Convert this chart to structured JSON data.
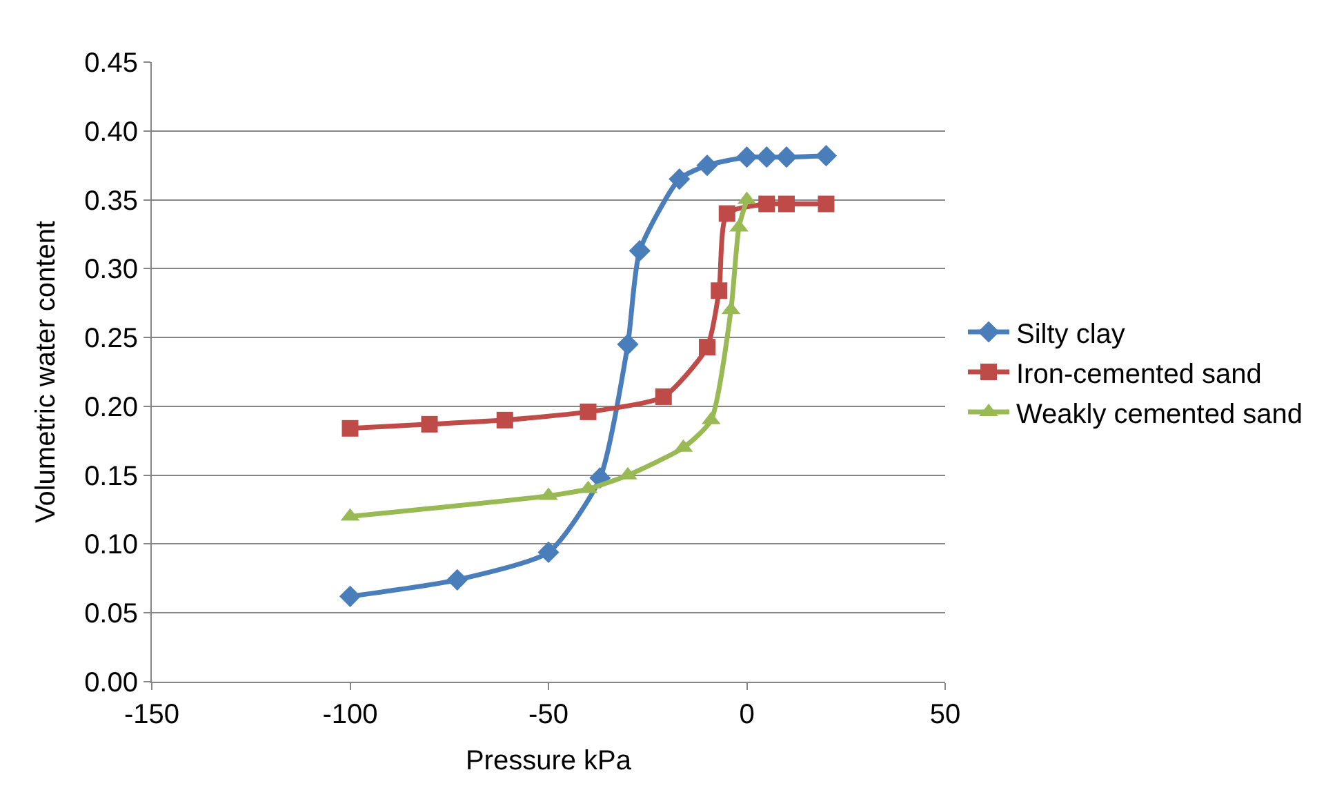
{
  "chart_data": {
    "type": "line",
    "xlabel": "Pressure kPa",
    "ylabel": "Volumetric water content",
    "xlim": [
      -150,
      50
    ],
    "xticks": [
      -150,
      -100,
      -50,
      0,
      50
    ],
    "ylim": [
      0,
      0.45
    ],
    "yticks": [
      {
        "value": 0,
        "label": "0.00"
      },
      {
        "value": 0.05,
        "label": "0.05"
      },
      {
        "value": 0.1,
        "label": "0.10"
      },
      {
        "value": 0.15,
        "label": "0.15"
      },
      {
        "value": 0.2,
        "label": "0.20"
      },
      {
        "value": 0.25,
        "label": "0.25"
      },
      {
        "value": 0.3,
        "label": "0.30"
      },
      {
        "value": 0.35,
        "label": "0.35"
      },
      {
        "value": 0.4,
        "label": "0.40"
      },
      {
        "value": 0.45,
        "label": "0.45"
      }
    ],
    "grid": "y",
    "legend": "right",
    "line_style": "solid",
    "series": [
      {
        "name": "Silty clay",
        "color": "#4a7ebb",
        "marker": "diamond",
        "x": [
          -100,
          -73,
          -50,
          -37,
          -30,
          -27,
          -17,
          -10,
          0,
          5,
          10,
          20
        ],
        "values": [
          0.062,
          0.074,
          0.094,
          0.148,
          0.245,
          0.313,
          0.365,
          0.375,
          0.381,
          0.381,
          0.381,
          0.382
        ]
      },
      {
        "name": "Iron-cemented sand",
        "color": "#be4b48",
        "marker": "square",
        "x": [
          -100,
          -80,
          -61,
          -40,
          -21,
          -10,
          -7,
          -5,
          0,
          5,
          10,
          20
        ],
        "values": [
          0.184,
          0.187,
          0.19,
          0.196,
          0.207,
          0.243,
          0.284,
          0.34,
          null,
          0.347,
          0.347,
          0.347
        ]
      },
      {
        "name": "Weakly cemented sand",
        "color": "#98b954",
        "marker": "triangle",
        "x": [
          -100,
          -50,
          -40,
          -30,
          -16,
          -9,
          -4,
          -2,
          0
        ],
        "values": [
          0.12,
          0.135,
          0.14,
          0.15,
          0.17,
          0.19,
          0.27,
          0.33,
          0.35
        ]
      }
    ]
  }
}
